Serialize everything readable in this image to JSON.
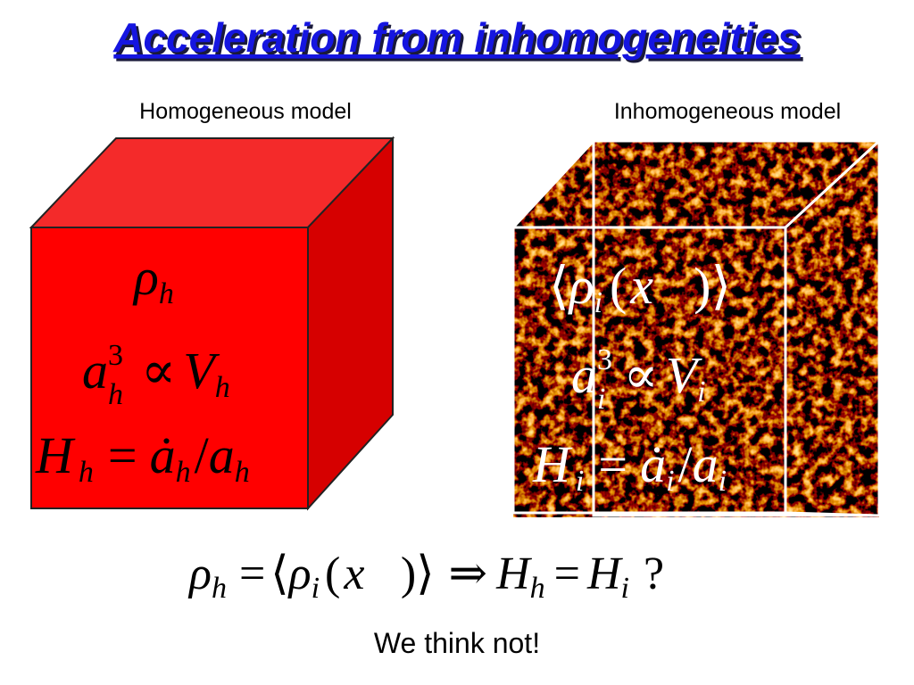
{
  "header": {
    "title": "Acceleration from inhomogeneities"
  },
  "left_box": {
    "label": "Homogeneous model",
    "formulas": [
      [
        "ρ",
        "h"
      ],
      [
        "a",
        "3",
        "h",
        "∝",
        "V",
        "h"
      ],
      [
        "H",
        "h",
        "=",
        "ȧ",
        "h",
        "/",
        "a",
        "h"
      ]
    ]
  },
  "right_box": {
    "label": "Inhomogeneous model",
    "formulas": [
      [
        "⟨",
        "ρ",
        "i",
        "(",
        "x⃗",
        ")",
        "⟩"
      ],
      [
        "a",
        "3",
        "i",
        "∝",
        "V",
        "i"
      ],
      [
        "H",
        "i",
        "=",
        "ȧ",
        "i",
        "/",
        "a",
        "i"
      ]
    ]
  },
  "equation": [
    "ρ",
    "h",
    "=",
    "⟨",
    "ρ",
    "i",
    "(",
    "x⃗",
    ")",
    "⟩",
    "⇒",
    "H",
    "h",
    "=",
    "H",
    "i",
    "?"
  ],
  "conclusion": "We think not!"
}
